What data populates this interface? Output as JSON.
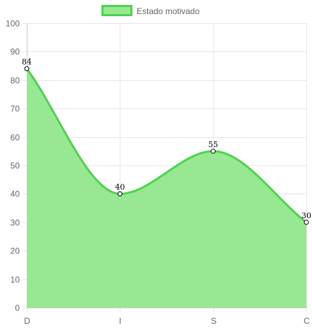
{
  "chart_data": {
    "type": "area",
    "categories": [
      "D",
      "I",
      "S",
      "C"
    ],
    "series": [
      {
        "name": "Estado motivado",
        "values": [
          84,
          40,
          55,
          30
        ]
      }
    ],
    "title": "",
    "xlabel": "",
    "ylabel": "",
    "ylim": [
      0,
      100
    ],
    "y_ticks": [
      "0",
      "10",
      "20",
      "30",
      "40",
      "50",
      "60",
      "70",
      "80",
      "90",
      "100"
    ],
    "grid": true,
    "legend": "top-center",
    "data_labels": true,
    "colors": {
      "line": "#4cd44c",
      "fill": "#98e893",
      "grid": "#e6e6e6",
      "axis": "#c8c8c8",
      "point_fill": "#ffffff",
      "point_stroke": "#000000"
    }
  }
}
